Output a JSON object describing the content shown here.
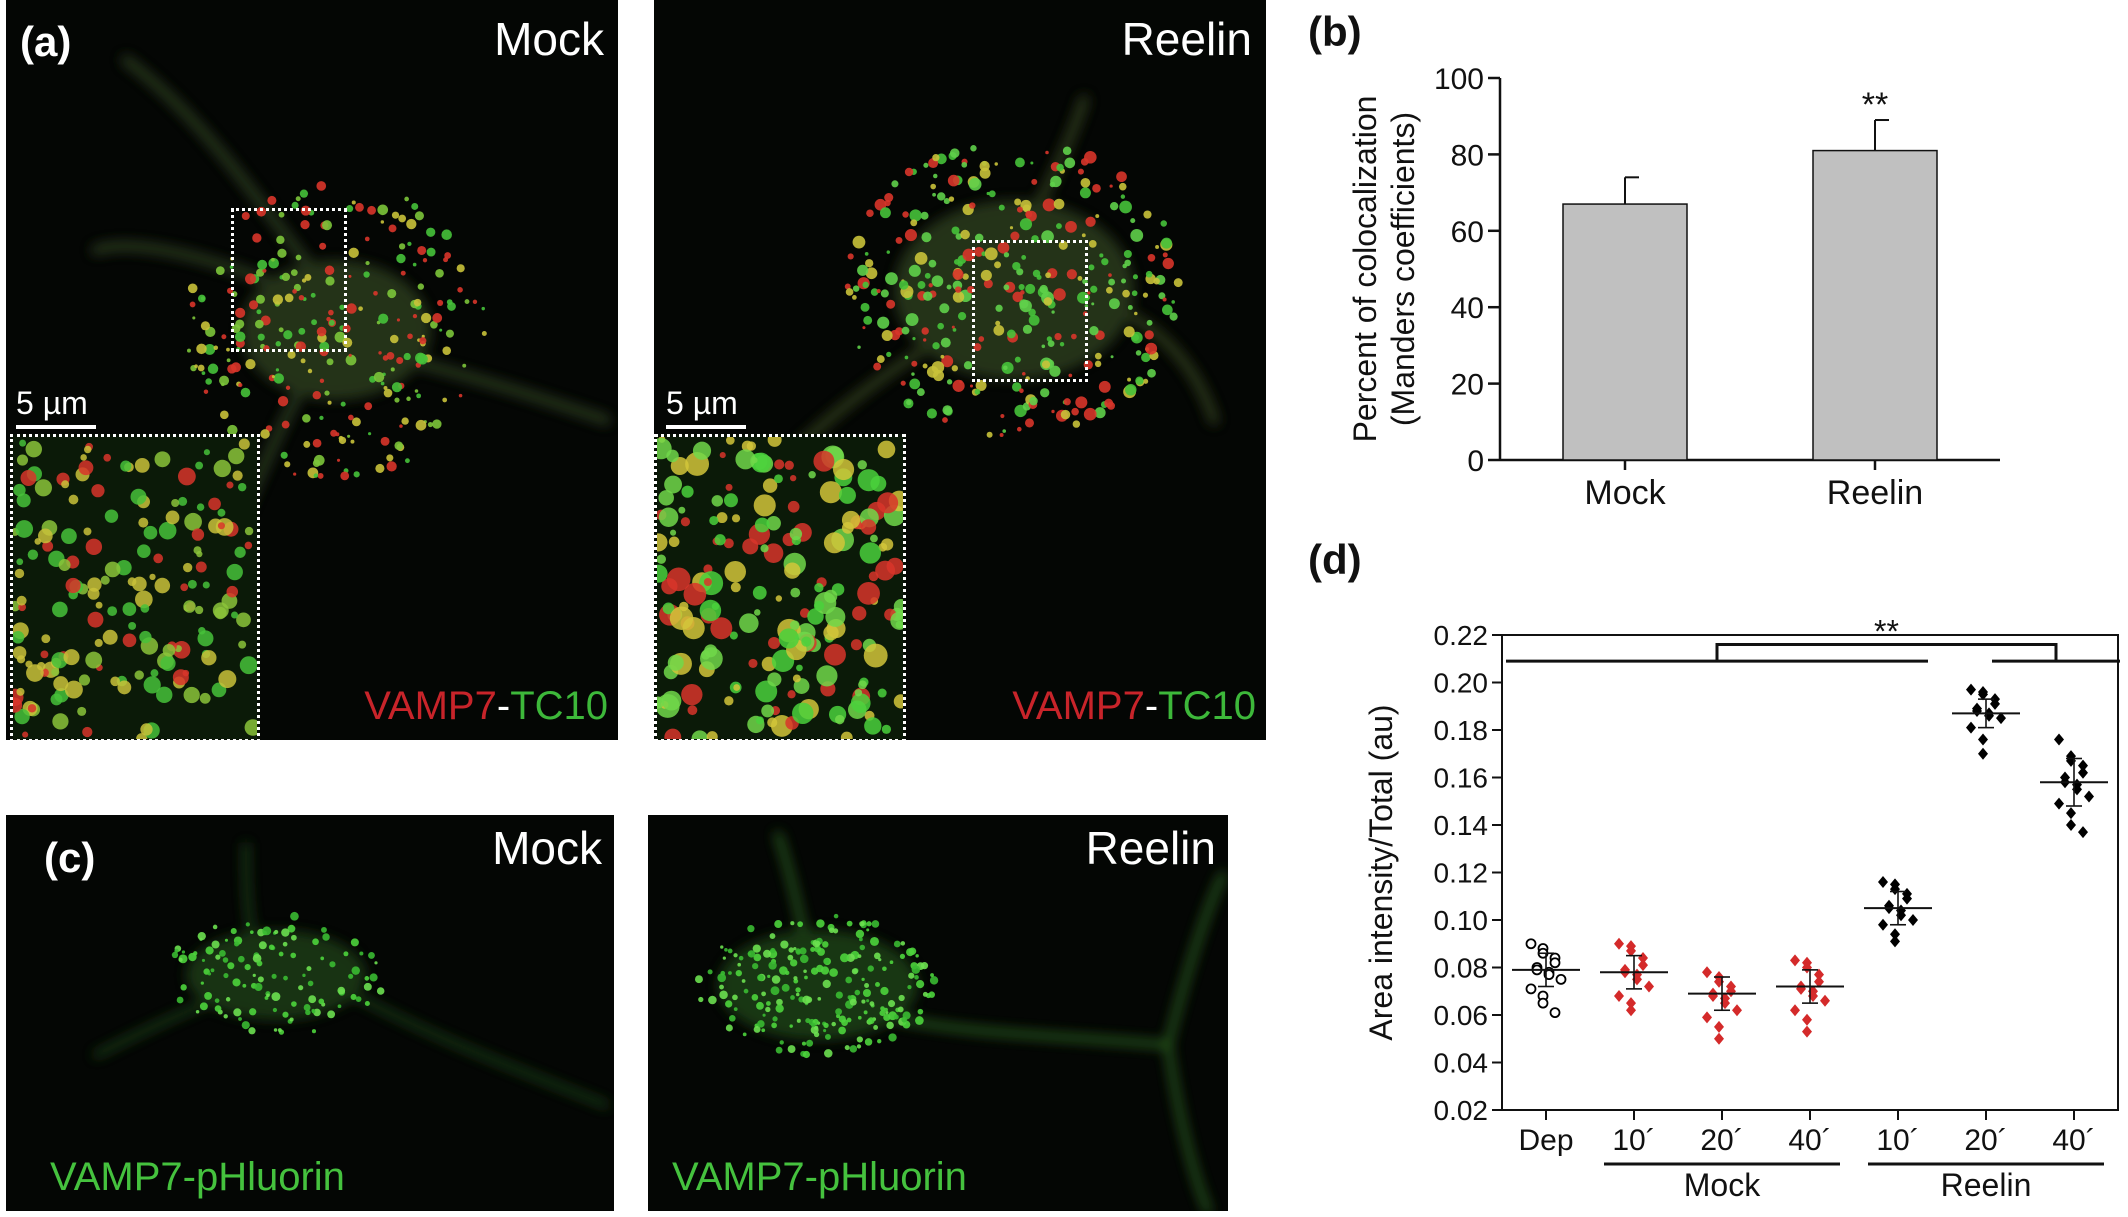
{
  "panel_a": {
    "label": "(a)",
    "mock": {
      "condition": "Mock",
      "scale": "5 µm",
      "channel_red": "VAMP7",
      "channel_sep": "-",
      "channel_green": "TC10"
    },
    "reelin": {
      "condition": "Reelin",
      "scale": "5 µm",
      "channel_red": "VAMP7",
      "channel_sep": "-",
      "channel_green": "TC10"
    }
  },
  "panel_b": {
    "label": "(b)"
  },
  "panel_c": {
    "label": "(c)",
    "mock": {
      "condition": "Mock",
      "channel": "VAMP7-pHluorin"
    },
    "reelin": {
      "condition": "Reelin",
      "channel": "VAMP7-pHluorin"
    }
  },
  "panel_d": {
    "label": "(d)"
  },
  "chart_data": [
    {
      "type": "bar",
      "categories": [
        "Mock",
        "Reelin"
      ],
      "values": [
        67,
        81
      ],
      "errors": [
        7,
        8
      ],
      "ylabel_line1": "Percent of colocalization",
      "ylabel_line2": "(Manders coefficients)",
      "ylim": [
        0,
        100
      ],
      "yticks": [
        0,
        20,
        40,
        60,
        80,
        100
      ],
      "bar_color": "#c0c0c0",
      "significance": {
        "category": "Reelin",
        "text": "**"
      }
    },
    {
      "type": "scatter",
      "ylabel": "Area intensity/Total (au)",
      "ylim": [
        0.02,
        0.22
      ],
      "yticks": [
        "0.02",
        "0.04",
        "0.06",
        "0.08",
        "0.10",
        "0.12",
        "0.14",
        "0.16",
        "0.18",
        "0.20",
        "0.22"
      ],
      "categories": [
        "Dep",
        "10´",
        "20´",
        "40´",
        "10´",
        "20´",
        "40´"
      ],
      "groups": [
        {
          "label": "Mock",
          "categories": [
            1,
            2,
            3
          ]
        },
        {
          "label": "Reelin",
          "categories": [
            4,
            5,
            6
          ]
        }
      ],
      "significance_text": "**",
      "series": [
        {
          "category": "Dep",
          "color": "#000000",
          "marker": "open-circle",
          "mean": 0.079,
          "sd": 0.007,
          "points": [
            0.09,
            0.088,
            0.086,
            0.084,
            0.082,
            0.08,
            0.079,
            0.078,
            0.077,
            0.075,
            0.071,
            0.068,
            0.065,
            0.061
          ]
        },
        {
          "category": "Mock 10´",
          "color": "#d42a2a",
          "marker": "diamond",
          "mean": 0.078,
          "sd": 0.007,
          "points": [
            0.09,
            0.089,
            0.087,
            0.084,
            0.081,
            0.079,
            0.078,
            0.077,
            0.075,
            0.072,
            0.068,
            0.065,
            0.062
          ]
        },
        {
          "category": "Mock 20´",
          "color": "#d42a2a",
          "marker": "diamond",
          "mean": 0.069,
          "sd": 0.007,
          "points": [
            0.078,
            0.076,
            0.074,
            0.072,
            0.07,
            0.069,
            0.068,
            0.067,
            0.065,
            0.062,
            0.059,
            0.055,
            0.05
          ]
        },
        {
          "category": "Mock 40´",
          "color": "#d42a2a",
          "marker": "diamond",
          "mean": 0.072,
          "sd": 0.007,
          "points": [
            0.083,
            0.082,
            0.08,
            0.077,
            0.074,
            0.072,
            0.071,
            0.07,
            0.068,
            0.066,
            0.062,
            0.058,
            0.053
          ]
        },
        {
          "category": "Reelin 10´",
          "color": "#000000",
          "marker": "diamond",
          "mean": 0.105,
          "sd": 0.007,
          "points": [
            0.116,
            0.115,
            0.113,
            0.111,
            0.109,
            0.106,
            0.105,
            0.104,
            0.102,
            0.1,
            0.098,
            0.094,
            0.091
          ]
        },
        {
          "category": "Reelin 20´",
          "color": "#000000",
          "marker": "diamond",
          "mean": 0.187,
          "sd": 0.006,
          "points": [
            0.197,
            0.196,
            0.195,
            0.193,
            0.191,
            0.189,
            0.188,
            0.187,
            0.186,
            0.185,
            0.181,
            0.176,
            0.17
          ]
        },
        {
          "category": "Reelin 40´",
          "color": "#000000",
          "marker": "diamond",
          "mean": 0.158,
          "sd": 0.01,
          "points": [
            0.176,
            0.169,
            0.167,
            0.165,
            0.162,
            0.16,
            0.158,
            0.157,
            0.155,
            0.152,
            0.149,
            0.145,
            0.14,
            0.137
          ]
        }
      ]
    }
  ]
}
